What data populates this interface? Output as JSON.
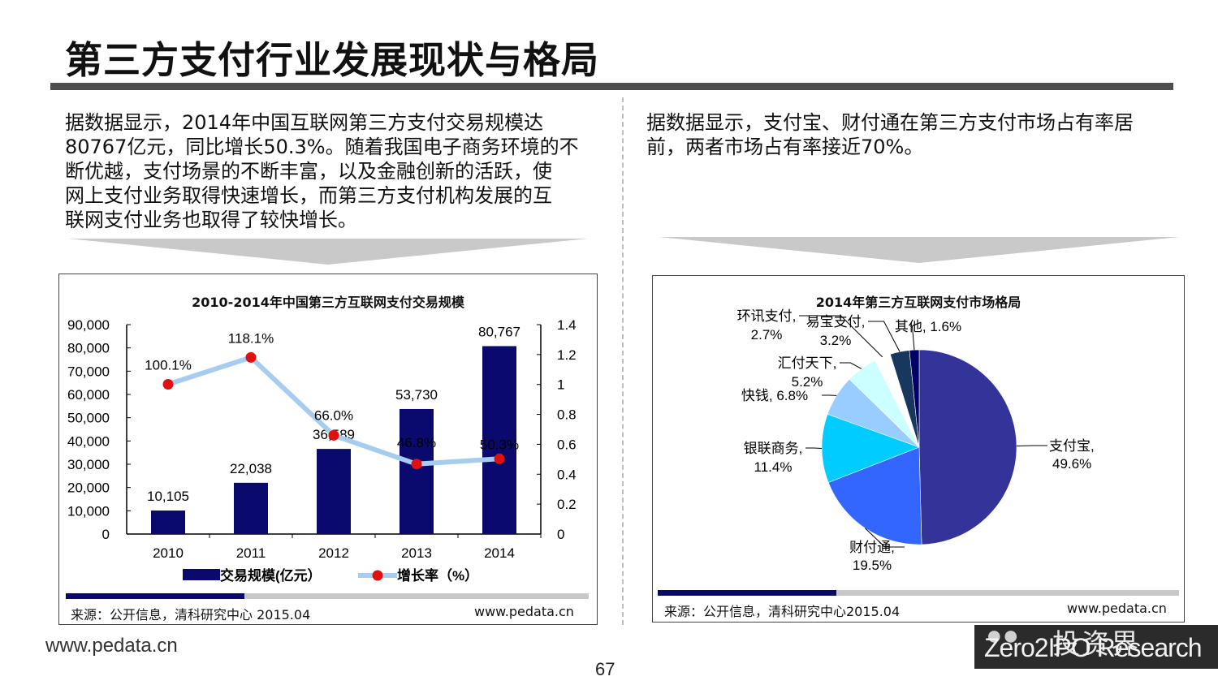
{
  "page": {
    "title": "第三方支付行业发展现状与格局",
    "left_text": [
      "据数据显示，2014年中国互联网第三方支付交易规模达",
      "80767亿元，同比增长50.3%。随着我国电子商务环境的不",
      "断优越，支付场景的不断丰富，以及金融创新的活跃，使",
      "网上支付业务取得快速增长，而第三方支付机构发展的互",
      "联网支付业务也取得了较快增长。"
    ],
    "right_text": [
      "据数据显示，支付宝、财付通在第三方支付市场占有率居",
      "前，两者市场占有率接近70%。"
    ],
    "left_source": "来源：公开信息，清科研究中心 2015.04",
    "left_source_url": "www.pedata.cn",
    "right_source": "来源：公开信息，清科研究中心2015.04",
    "right_source_url": "www.pedata.cn",
    "footer_url": "www.pedata.cn",
    "page_number": "67",
    "brand_cn": "投资界",
    "brand_en": "Zero2IPO Research",
    "colors": {
      "bar": "#0a0a6e",
      "line": "#a6cdf0",
      "marker": "#e01010"
    }
  },
  "chart_data": [
    {
      "type": "bar",
      "title": "2010-2014年中国第三方互联网支付交易规模",
      "categories": [
        "2010",
        "2011",
        "2012",
        "2013",
        "2014"
      ],
      "series": [
        {
          "name": "交易规模(亿元）",
          "type": "bar",
          "axis": "left",
          "values": [
            10105,
            22038,
            36589,
            53730,
            80767
          ],
          "labels": [
            "10,105",
            "22,038",
            "36,589",
            "53,730",
            "80,767"
          ]
        },
        {
          "name": "增长率（%）",
          "type": "line",
          "axis": "right",
          "values": [
            1.001,
            1.181,
            0.66,
            0.468,
            0.503
          ],
          "labels": [
            "100.1%",
            "118.1%",
            "66.0%",
            "46.8%",
            "50.3%"
          ]
        }
      ],
      "left_axis": {
        "min": 0,
        "max": 90000,
        "ticks": [
          "0",
          "10,000",
          "20,000",
          "30,000",
          "40,000",
          "50,000",
          "60,000",
          "70,000",
          "80,000",
          "90,000"
        ]
      },
      "right_axis": {
        "min": 0,
        "max": 1.4,
        "ticks": [
          "0",
          "0.2",
          "0.4",
          "0.6",
          "0.8",
          "1",
          "1.2",
          "1.4"
        ]
      },
      "legend_position": "bottom"
    },
    {
      "type": "pie",
      "title": "2014年第三方互联网支付市场格局",
      "slices": [
        {
          "name": "支付宝,",
          "value": 49.6,
          "label": "49.6%",
          "color": "#333399"
        },
        {
          "name": "财付通,",
          "value": 19.5,
          "label": "19.5%",
          "color": "#3366ff"
        },
        {
          "name": "银联商务,",
          "value": 11.4,
          "label": "11.4%",
          "color": "#00ccff"
        },
        {
          "name": "快钱,",
          "value": 6.8,
          "label": "6.8%",
          "color": "#99ccff"
        },
        {
          "name": "汇付天下,",
          "value": 5.2,
          "label": "5.2%",
          "color": "#ccffff"
        },
        {
          "name": "环讯支付,",
          "value": 2.7,
          "label": "2.7%",
          "color": "#ffffff"
        },
        {
          "name": "易宝支付,",
          "value": 3.2,
          "label": "3.2%",
          "color": "#17375e"
        },
        {
          "name": "其他,",
          "value": 1.6,
          "label": "1.6%",
          "color": "#000066"
        }
      ]
    }
  ]
}
